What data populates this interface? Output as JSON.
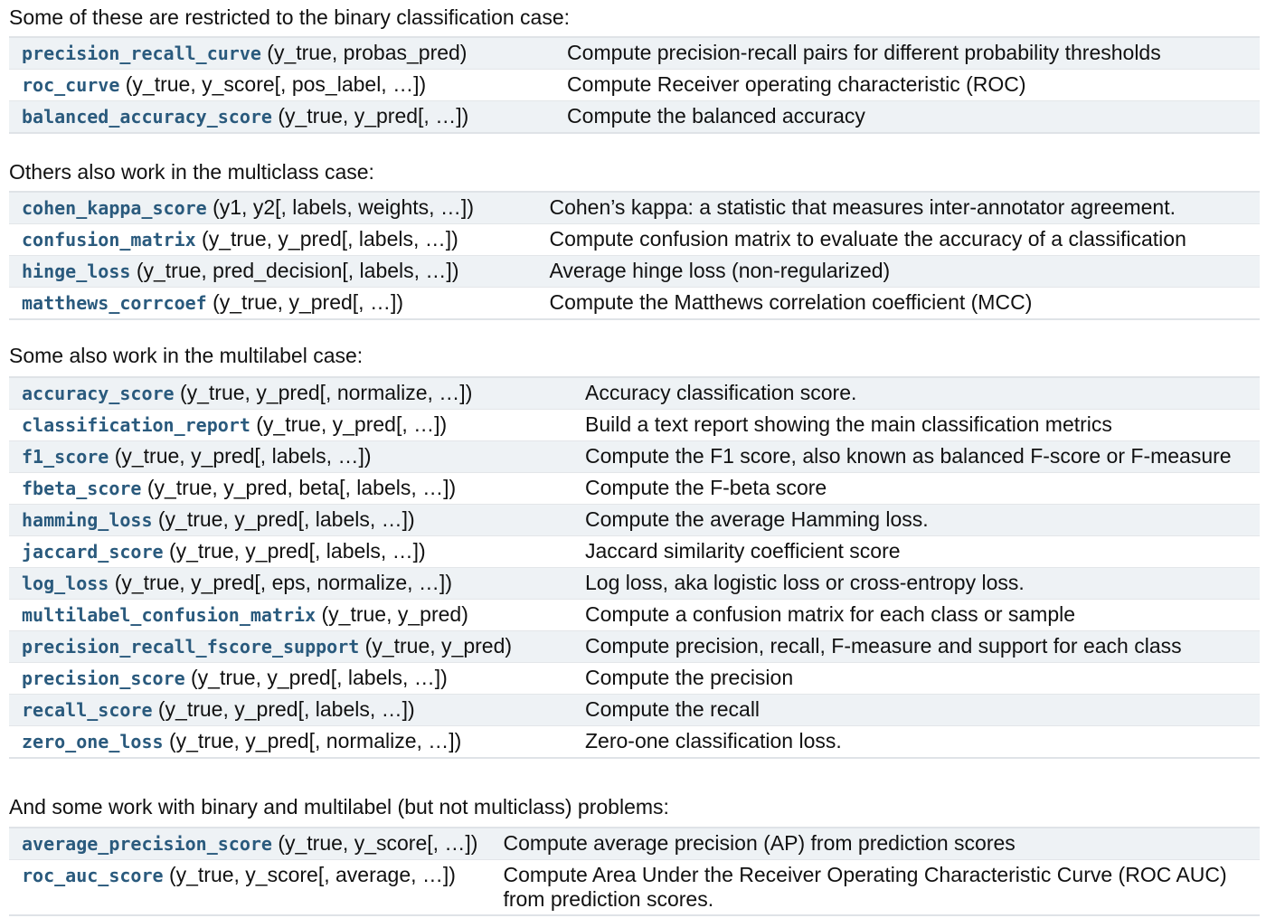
{
  "sections": [
    {
      "heading": "Some of these are restricted to the binary classification case:",
      "rows": [
        {
          "name": "precision_recall_curve",
          "args": "(y_true, probas_pred)",
          "desc": "Compute precision-recall pairs for different probability thresholds"
        },
        {
          "name": "roc_curve",
          "args": "(y_true, y_score[, pos_label, …])",
          "desc": "Compute Receiver operating characteristic (ROC)"
        },
        {
          "name": "balanced_accuracy_score",
          "args": "(y_true, y_pred[, …])",
          "desc": "Compute the balanced accuracy"
        }
      ]
    },
    {
      "heading": "Others also work in the multiclass case:",
      "rows": [
        {
          "name": "cohen_kappa_score",
          "args": "(y1, y2[, labels, weights, …])",
          "desc": "Cohen’s kappa: a statistic that measures inter-annotator agreement."
        },
        {
          "name": "confusion_matrix",
          "args": "(y_true, y_pred[, labels, …])",
          "desc": "Compute confusion matrix to evaluate the accuracy of a classification"
        },
        {
          "name": "hinge_loss",
          "args": "(y_true, pred_decision[, labels, …])",
          "desc": "Average hinge loss (non-regularized)"
        },
        {
          "name": "matthews_corrcoef",
          "args": "(y_true, y_pred[, …])",
          "desc": "Compute the Matthews correlation coefficient (MCC)"
        }
      ]
    },
    {
      "heading": "Some also work in the multilabel case:",
      "rows": [
        {
          "name": "accuracy_score",
          "args": "(y_true, y_pred[, normalize, …])",
          "desc": "Accuracy classification score."
        },
        {
          "name": "classification_report",
          "args": "(y_true, y_pred[, …])",
          "desc": "Build a text report showing the main classification metrics"
        },
        {
          "name": "f1_score",
          "args": "(y_true, y_pred[, labels, …])",
          "desc": "Compute the F1 score, also known as balanced F-score or F-measure"
        },
        {
          "name": "fbeta_score",
          "args": "(y_true, y_pred, beta[, labels, …])",
          "desc": "Compute the F-beta score"
        },
        {
          "name": "hamming_loss",
          "args": "(y_true, y_pred[, labels, …])",
          "desc": "Compute the average Hamming loss."
        },
        {
          "name": "jaccard_score",
          "args": "(y_true, y_pred[, labels, …])",
          "desc": "Jaccard similarity coefficient score"
        },
        {
          "name": "log_loss",
          "args": "(y_true, y_pred[, eps, normalize, …])",
          "desc": "Log loss, aka logistic loss or cross-entropy loss."
        },
        {
          "name": "multilabel_confusion_matrix",
          "args": "(y_true, y_pred)",
          "desc": "Compute a confusion matrix for each class or sample"
        },
        {
          "name": "precision_recall_fscore_support",
          "args": "(y_true, y_pred)",
          "desc": "Compute precision, recall, F-measure and support for each class"
        },
        {
          "name": "precision_score",
          "args": "(y_true, y_pred[, labels, …])",
          "desc": "Compute the precision"
        },
        {
          "name": "recall_score",
          "args": "(y_true, y_pred[, labels, …])",
          "desc": "Compute the recall"
        },
        {
          "name": "zero_one_loss",
          "args": "(y_true, y_pred[, normalize, …])",
          "desc": "Zero-one classification loss."
        }
      ]
    },
    {
      "heading": "And some work with binary and multilabel (but not multiclass) problems:",
      "rows": [
        {
          "name": "average_precision_score",
          "args": "(y_true, y_score[, …])",
          "desc": "Compute average precision (AP) from prediction scores"
        },
        {
          "name": "roc_auc_score",
          "args": "(y_true, y_score[, average, …])",
          "desc": "Compute Area Under the Receiver Operating Characteristic Curve (ROC AUC) from prediction scores."
        }
      ]
    }
  ]
}
